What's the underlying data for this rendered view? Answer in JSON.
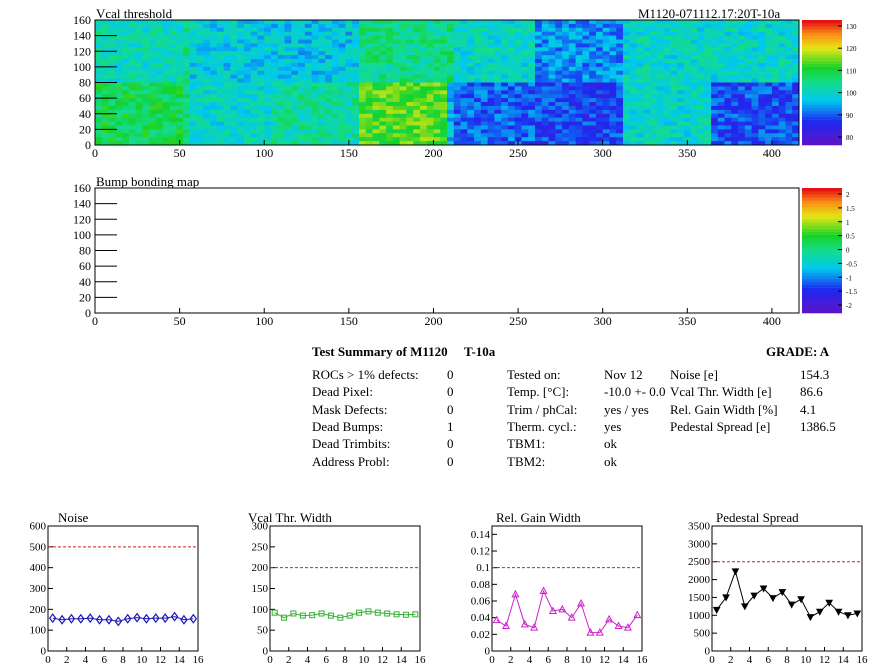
{
  "colors": {
    "noise_marker": "#1a1ab4",
    "vcal_marker": "#33b033",
    "gain_marker": "#cc22cc",
    "pedestal_marker": "#000000",
    "limit_line": "#cc2222"
  },
  "maps": [
    {
      "title": "Vcal threshold",
      "id_label": "M1120-071112.17:20T-10a",
      "palette_labels": [
        "80",
        "90",
        "100",
        "110",
        "120",
        "130"
      ]
    },
    {
      "title": "Bump bonding map",
      "id_label": "",
      "palette_labels": [
        "-2",
        "-1.5",
        "-1",
        "-0.5",
        "0",
        "0.5",
        "1",
        "1.5",
        "2"
      ]
    }
  ],
  "map_axis": {
    "x_ticks": [
      "0",
      "50",
      "100",
      "150",
      "200",
      "250",
      "300",
      "350",
      "400"
    ],
    "y_ticks": [
      "0",
      "20",
      "40",
      "60",
      "80",
      "100",
      "120",
      "140",
      "160"
    ]
  },
  "summary": {
    "title": "Test Summary of M1120",
    "temp_tag": "T-10a",
    "grade": "GRADE:  A",
    "defects": [
      {
        "label": "ROCs > 1% defects:",
        "value": "0"
      },
      {
        "label": "Dead Pixel:",
        "value": "0"
      },
      {
        "label": "Mask Defects:",
        "value": "0"
      },
      {
        "label": "Dead Bumps:",
        "value": "1"
      },
      {
        "label": "Dead Trimbits:",
        "value": "0"
      },
      {
        "label": "Address Probl:",
        "value": "0"
      }
    ],
    "conditions": [
      {
        "label": "Tested on:",
        "value": "Nov 12"
      },
      {
        "label": "Temp. [°C]:",
        "value": "-10.0 +- 0.0"
      },
      {
        "label": "Trim / phCal:",
        "value": "yes / yes"
      },
      {
        "label": "Therm. cycl.:",
        "value": "yes"
      },
      {
        "label": "TBM1:",
        "value": "ok"
      },
      {
        "label": "TBM2:",
        "value": "ok"
      }
    ],
    "metrics": [
      {
        "label": "Noise [e]",
        "value": "154.3"
      },
      {
        "label": "Vcal Thr. Width [e]",
        "value": "86.6"
      },
      {
        "label": "Rel. Gain Width [%]",
        "value": "4.1"
      },
      {
        "label": "Pedestal Spread [e]",
        "value": "1386.5"
      }
    ]
  },
  "chart_data": [
    {
      "type": "heatmap",
      "title": "Vcal threshold",
      "xlim": [
        0,
        416
      ],
      "ylim": [
        0,
        160
      ],
      "z_range": [
        80,
        135
      ],
      "roc_grid": {
        "cols": 8,
        "rows": 2
      },
      "roc_mean_values": [
        [
          104,
          101,
          100,
          108,
          103,
          96,
          103,
          103
        ],
        [
          111,
          103,
          106,
          116,
          93,
          91,
          103,
          92
        ]
      ]
    },
    {
      "type": "heatmap",
      "title": "Bump bonding map",
      "xlim": [
        0,
        416
      ],
      "ylim": [
        0,
        160
      ],
      "z_range": [
        -2,
        2
      ]
    },
    {
      "type": "line",
      "title": "Noise",
      "x": [
        0,
        1,
        2,
        3,
        4,
        5,
        6,
        7,
        8,
        9,
        10,
        11,
        12,
        13,
        14,
        15
      ],
      "values": [
        158,
        150,
        155,
        155,
        158,
        150,
        150,
        142,
        155,
        160,
        155,
        158,
        158,
        165,
        150,
        155
      ],
      "limit": 500,
      "xlim": [
        0,
        16
      ],
      "ylim": [
        0,
        600
      ],
      "x_ticks": [
        "0",
        "2",
        "4",
        "6",
        "8",
        "10",
        "12",
        "14",
        "16"
      ],
      "y_ticks": [
        "0",
        "100",
        "200",
        "300",
        "400",
        "500",
        "600"
      ]
    },
    {
      "type": "line",
      "title": "Vcal Thr. Width",
      "x": [
        0,
        1,
        2,
        3,
        4,
        5,
        6,
        7,
        8,
        9,
        10,
        11,
        12,
        13,
        14,
        15
      ],
      "values": [
        92,
        80,
        90,
        85,
        86,
        90,
        85,
        80,
        85,
        92,
        95,
        92,
        90,
        88,
        87,
        88
      ],
      "limit": 200,
      "xlim": [
        0,
        16
      ],
      "ylim": [
        0,
        300
      ],
      "x_ticks": [
        "0",
        "2",
        "4",
        "6",
        "8",
        "10",
        "12",
        "14",
        "16"
      ],
      "y_ticks": [
        "0",
        "50",
        "100",
        "150",
        "200",
        "250",
        "300"
      ]
    },
    {
      "type": "line",
      "title": "Rel. Gain Width",
      "x": [
        0,
        1,
        2,
        3,
        4,
        5,
        6,
        7,
        8,
        9,
        10,
        11,
        12,
        13,
        14,
        15
      ],
      "values": [
        0.037,
        0.03,
        0.068,
        0.032,
        0.028,
        0.072,
        0.048,
        0.05,
        0.04,
        0.057,
        0.022,
        0.022,
        0.038,
        0.03,
        0.028,
        0.043
      ],
      "limit": 0.1,
      "xlim": [
        0,
        16
      ],
      "ylim": [
        0,
        0.15
      ],
      "x_ticks": [
        "0",
        "2",
        "4",
        "6",
        "8",
        "10",
        "12",
        "14",
        "16"
      ],
      "y_ticks": [
        "0",
        "0.02",
        "0.04",
        "0.06",
        "0.08",
        "0.1",
        "0.12",
        "0.14"
      ]
    },
    {
      "type": "line",
      "title": "Pedestal Spread",
      "x": [
        0,
        1,
        2,
        3,
        4,
        5,
        6,
        7,
        8,
        9,
        10,
        11,
        12,
        13,
        14,
        15
      ],
      "values": [
        1150,
        1500,
        2230,
        1250,
        1550,
        1750,
        1480,
        1650,
        1300,
        1450,
        950,
        1100,
        1350,
        1100,
        1000,
        1050
      ],
      "limit": 2500,
      "xlim": [
        0,
        16
      ],
      "ylim": [
        0,
        3500
      ],
      "x_ticks": [
        "0",
        "2",
        "4",
        "6",
        "8",
        "10",
        "12",
        "14",
        "16"
      ],
      "y_ticks": [
        "0",
        "500",
        "1000",
        "1500",
        "2000",
        "2500",
        "3000",
        "3500"
      ]
    }
  ]
}
